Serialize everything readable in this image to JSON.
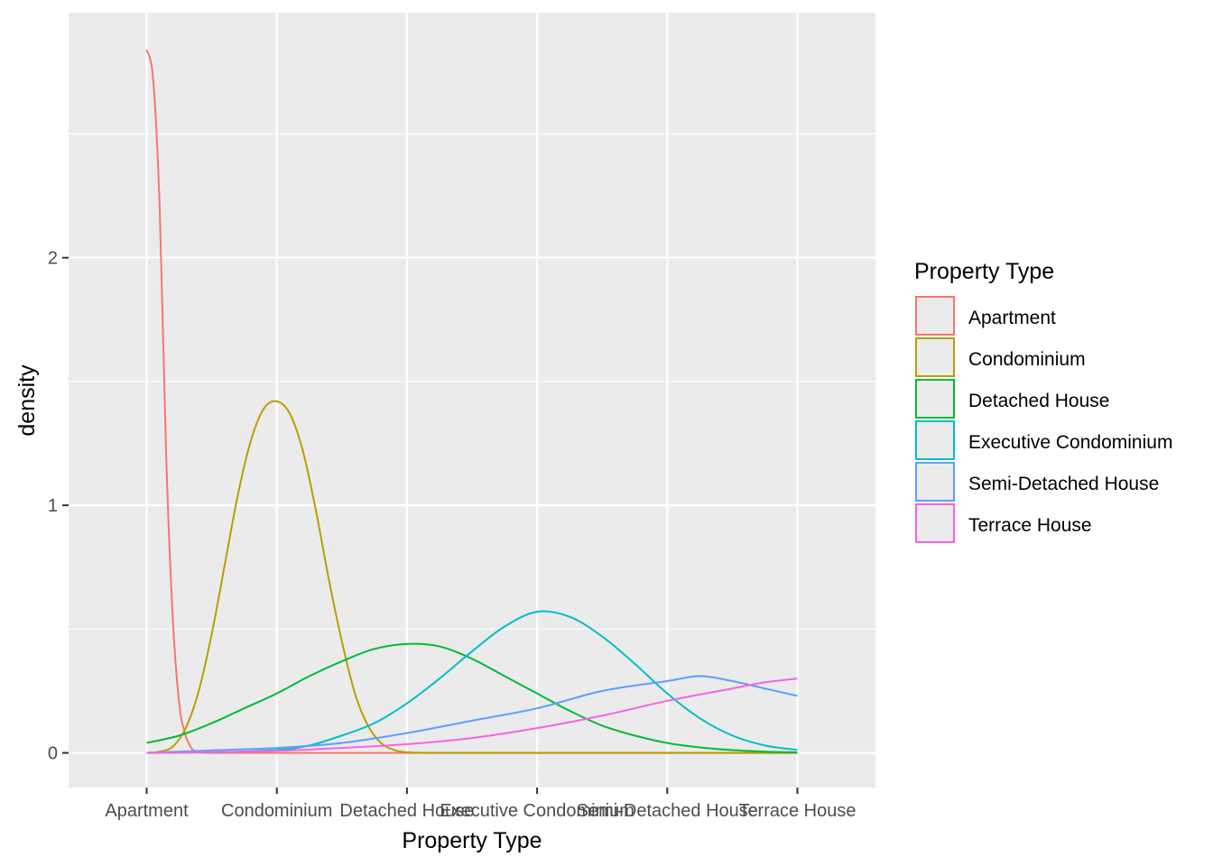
{
  "chart_data": {
    "type": "line",
    "title": "",
    "xlabel": "Property Type",
    "ylabel": "density",
    "x_ticks": [
      "Apartment",
      "Condominium",
      "Detached House",
      "Executive Condominium",
      "Semi-Detached House",
      "Terrace House"
    ],
    "xlim": [
      0.4,
      6.6
    ],
    "ylim": [
      -0.14,
      2.99
    ],
    "y_ticks": [
      0,
      1,
      2
    ],
    "grid": true,
    "legend": {
      "title": "Property Type",
      "position": "right"
    },
    "series": [
      {
        "name": "Apartment",
        "color": "#F8766D",
        "points": [
          [
            1,
            2.84
          ],
          [
            1.05,
            2.72
          ],
          [
            1.1,
            2.2
          ],
          [
            1.15,
            1.2
          ],
          [
            1.2,
            0.55
          ],
          [
            1.25,
            0.2
          ],
          [
            1.3,
            0.07
          ],
          [
            1.35,
            0.015
          ],
          [
            1.4,
            0.004
          ],
          [
            1.5,
            0.0
          ],
          [
            2,
            0.0
          ],
          [
            3,
            0.0
          ],
          [
            4,
            0.0
          ],
          [
            5,
            0.0
          ],
          [
            6,
            0.0
          ]
        ]
      },
      {
        "name": "Condominium",
        "color": "#B79F00",
        "points": [
          [
            1,
            0.0
          ],
          [
            1.1,
            0.005
          ],
          [
            1.2,
            0.025
          ],
          [
            1.3,
            0.1
          ],
          [
            1.4,
            0.25
          ],
          [
            1.5,
            0.48
          ],
          [
            1.6,
            0.76
          ],
          [
            1.7,
            1.04
          ],
          [
            1.8,
            1.26
          ],
          [
            1.9,
            1.39
          ],
          [
            2,
            1.42
          ],
          [
            2.1,
            1.37
          ],
          [
            2.2,
            1.22
          ],
          [
            2.3,
            0.98
          ],
          [
            2.4,
            0.7
          ],
          [
            2.5,
            0.45
          ],
          [
            2.6,
            0.24
          ],
          [
            2.7,
            0.11
          ],
          [
            2.8,
            0.04
          ],
          [
            2.9,
            0.012
          ],
          [
            3,
            0.003
          ],
          [
            3.2,
            0.0
          ],
          [
            4,
            0.0
          ],
          [
            5,
            0.0
          ],
          [
            6,
            0.0
          ]
        ]
      },
      {
        "name": "Detached House",
        "color": "#00BA38",
        "points": [
          [
            1,
            0.04
          ],
          [
            1.25,
            0.07
          ],
          [
            1.5,
            0.12
          ],
          [
            1.75,
            0.18
          ],
          [
            2,
            0.24
          ],
          [
            2.25,
            0.31
          ],
          [
            2.5,
            0.37
          ],
          [
            2.75,
            0.42
          ],
          [
            3,
            0.44
          ],
          [
            3.25,
            0.43
          ],
          [
            3.5,
            0.38
          ],
          [
            3.75,
            0.31
          ],
          [
            4,
            0.24
          ],
          [
            4.25,
            0.17
          ],
          [
            4.5,
            0.11
          ],
          [
            4.75,
            0.07
          ],
          [
            5,
            0.04
          ],
          [
            5.25,
            0.022
          ],
          [
            5.5,
            0.011
          ],
          [
            5.75,
            0.005
          ],
          [
            6,
            0.002
          ]
        ]
      },
      {
        "name": "Executive Condominium",
        "color": "#00BFC4",
        "points": [
          [
            1,
            0.0
          ],
          [
            1.5,
            0.002
          ],
          [
            2,
            0.012
          ],
          [
            2.25,
            0.03
          ],
          [
            2.5,
            0.07
          ],
          [
            2.75,
            0.12
          ],
          [
            3,
            0.2
          ],
          [
            3.25,
            0.3
          ],
          [
            3.5,
            0.41
          ],
          [
            3.75,
            0.51
          ],
          [
            4,
            0.57
          ],
          [
            4.25,
            0.55
          ],
          [
            4.5,
            0.47
          ],
          [
            4.75,
            0.36
          ],
          [
            5,
            0.24
          ],
          [
            5.25,
            0.14
          ],
          [
            5.5,
            0.07
          ],
          [
            5.75,
            0.03
          ],
          [
            6,
            0.012
          ]
        ]
      },
      {
        "name": "Semi-Detached House",
        "color": "#619CFF",
        "points": [
          [
            1,
            0.0
          ],
          [
            1.5,
            0.01
          ],
          [
            2,
            0.02
          ],
          [
            2.5,
            0.04
          ],
          [
            3,
            0.08
          ],
          [
            3.5,
            0.13
          ],
          [
            4,
            0.18
          ],
          [
            4.5,
            0.25
          ],
          [
            5,
            0.29
          ],
          [
            5.25,
            0.31
          ],
          [
            5.5,
            0.29
          ],
          [
            5.75,
            0.26
          ],
          [
            6,
            0.23
          ]
        ]
      },
      {
        "name": "Terrace House",
        "color": "#F564E3",
        "points": [
          [
            1,
            0.0
          ],
          [
            1.5,
            0.003
          ],
          [
            2,
            0.008
          ],
          [
            2.5,
            0.02
          ],
          [
            3,
            0.035
          ],
          [
            3.5,
            0.06
          ],
          [
            4,
            0.1
          ],
          [
            4.5,
            0.15
          ],
          [
            5,
            0.21
          ],
          [
            5.5,
            0.26
          ],
          [
            5.75,
            0.285
          ],
          [
            6,
            0.3
          ]
        ]
      }
    ]
  }
}
